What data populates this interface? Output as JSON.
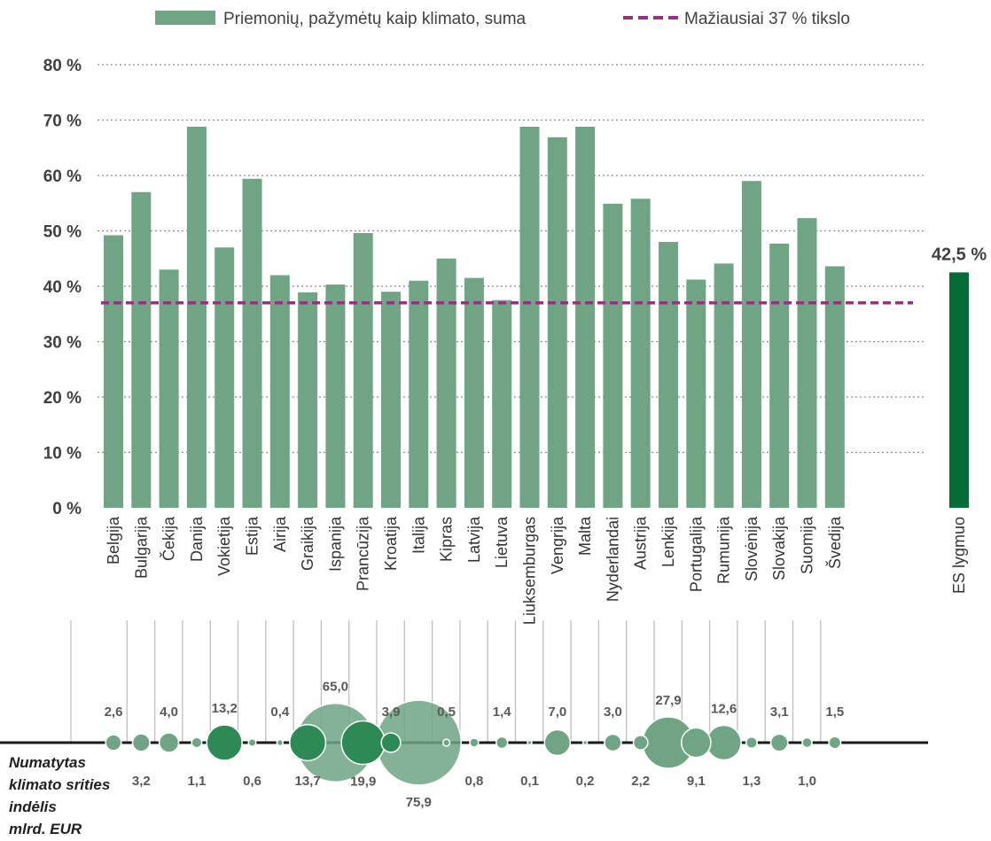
{
  "chart_data": {
    "type": "bar",
    "categories": [
      "Belgija",
      "Bulgarija",
      "Čekija",
      "Danija",
      "Vokietija",
      "Estija",
      "Airija",
      "Graikija",
      "Ispanija",
      "Prancūzija",
      "Kroatija",
      "Italija",
      "Kipras",
      "Latvija",
      "Lietuva",
      "Liuksemburgas",
      "Vengrija",
      "Malta",
      "Nyderlandai",
      "Austrija",
      "Lenkija",
      "Portugalija",
      "Rumunija",
      "Slovėnija",
      "Slovakija",
      "Suomija",
      "Švedija"
    ],
    "values": [
      49.2,
      57.0,
      43.0,
      68.8,
      47.0,
      59.4,
      42.0,
      38.9,
      40.3,
      49.6,
      39.0,
      41.0,
      45.0,
      41.5,
      37.5,
      68.8,
      66.9,
      68.8,
      54.9,
      55.8,
      48.0,
      41.2,
      44.1,
      59.0,
      47.7,
      52.3,
      43.6
    ],
    "ylim": [
      0,
      80
    ],
    "yticks": [
      "0 %",
      "10 %",
      "20 %",
      "30 %",
      "40 %",
      "50 %",
      "60 %",
      "70 %",
      "80 %"
    ],
    "grid": true,
    "legend_position": "top",
    "series": [
      {
        "name": "Priemonių, pažymėtų kaip klimato, suma",
        "color": "#6fa584"
      }
    ],
    "target": {
      "name": "Mažiausiai 37 % tikslo",
      "value": 37,
      "color": "#92357f"
    },
    "eu_level": {
      "category": "ES lygmuo",
      "value": 42.5,
      "label": "42,5 %",
      "color": "#036b36"
    },
    "bubbles": {
      "label": [
        "Numatytas",
        "klimato srities",
        "indėlis",
        "mlrd. EUR"
      ],
      "values": [
        2.6,
        3.2,
        4.0,
        1.1,
        13.2,
        0.6,
        0.4,
        13.7,
        65.0,
        19.9,
        3.9,
        75.9,
        0.5,
        0.8,
        1.4,
        0.1,
        7.0,
        0.2,
        3.0,
        2.2,
        27.9,
        9.1,
        12.6,
        1.3,
        3.1,
        1.0,
        1.5
      ],
      "labels": [
        "2,6",
        "3,2",
        "4,0",
        "1,1",
        "13,2",
        "0,6",
        "0,4",
        "13,7",
        "65,0",
        "19,9",
        "3,9",
        "75,9",
        "0,5",
        "0,8",
        "1,4",
        "0,1",
        "7,0",
        "0,2",
        "3,0",
        "2,2",
        "27,9",
        "9,1",
        "12,6",
        "1,3",
        "3,1",
        "1,0",
        "1,5"
      ],
      "label_side": [
        "above",
        "below",
        "above",
        "below",
        "above",
        "below",
        "above",
        "below",
        "above",
        "below",
        "above",
        "below",
        "above",
        "below",
        "above",
        "below",
        "above",
        "below",
        "above",
        "below",
        "above",
        "below",
        "above",
        "below",
        "above",
        "below",
        "above"
      ],
      "color": "#6fa584",
      "dark_color": "#2e8a55"
    }
  }
}
